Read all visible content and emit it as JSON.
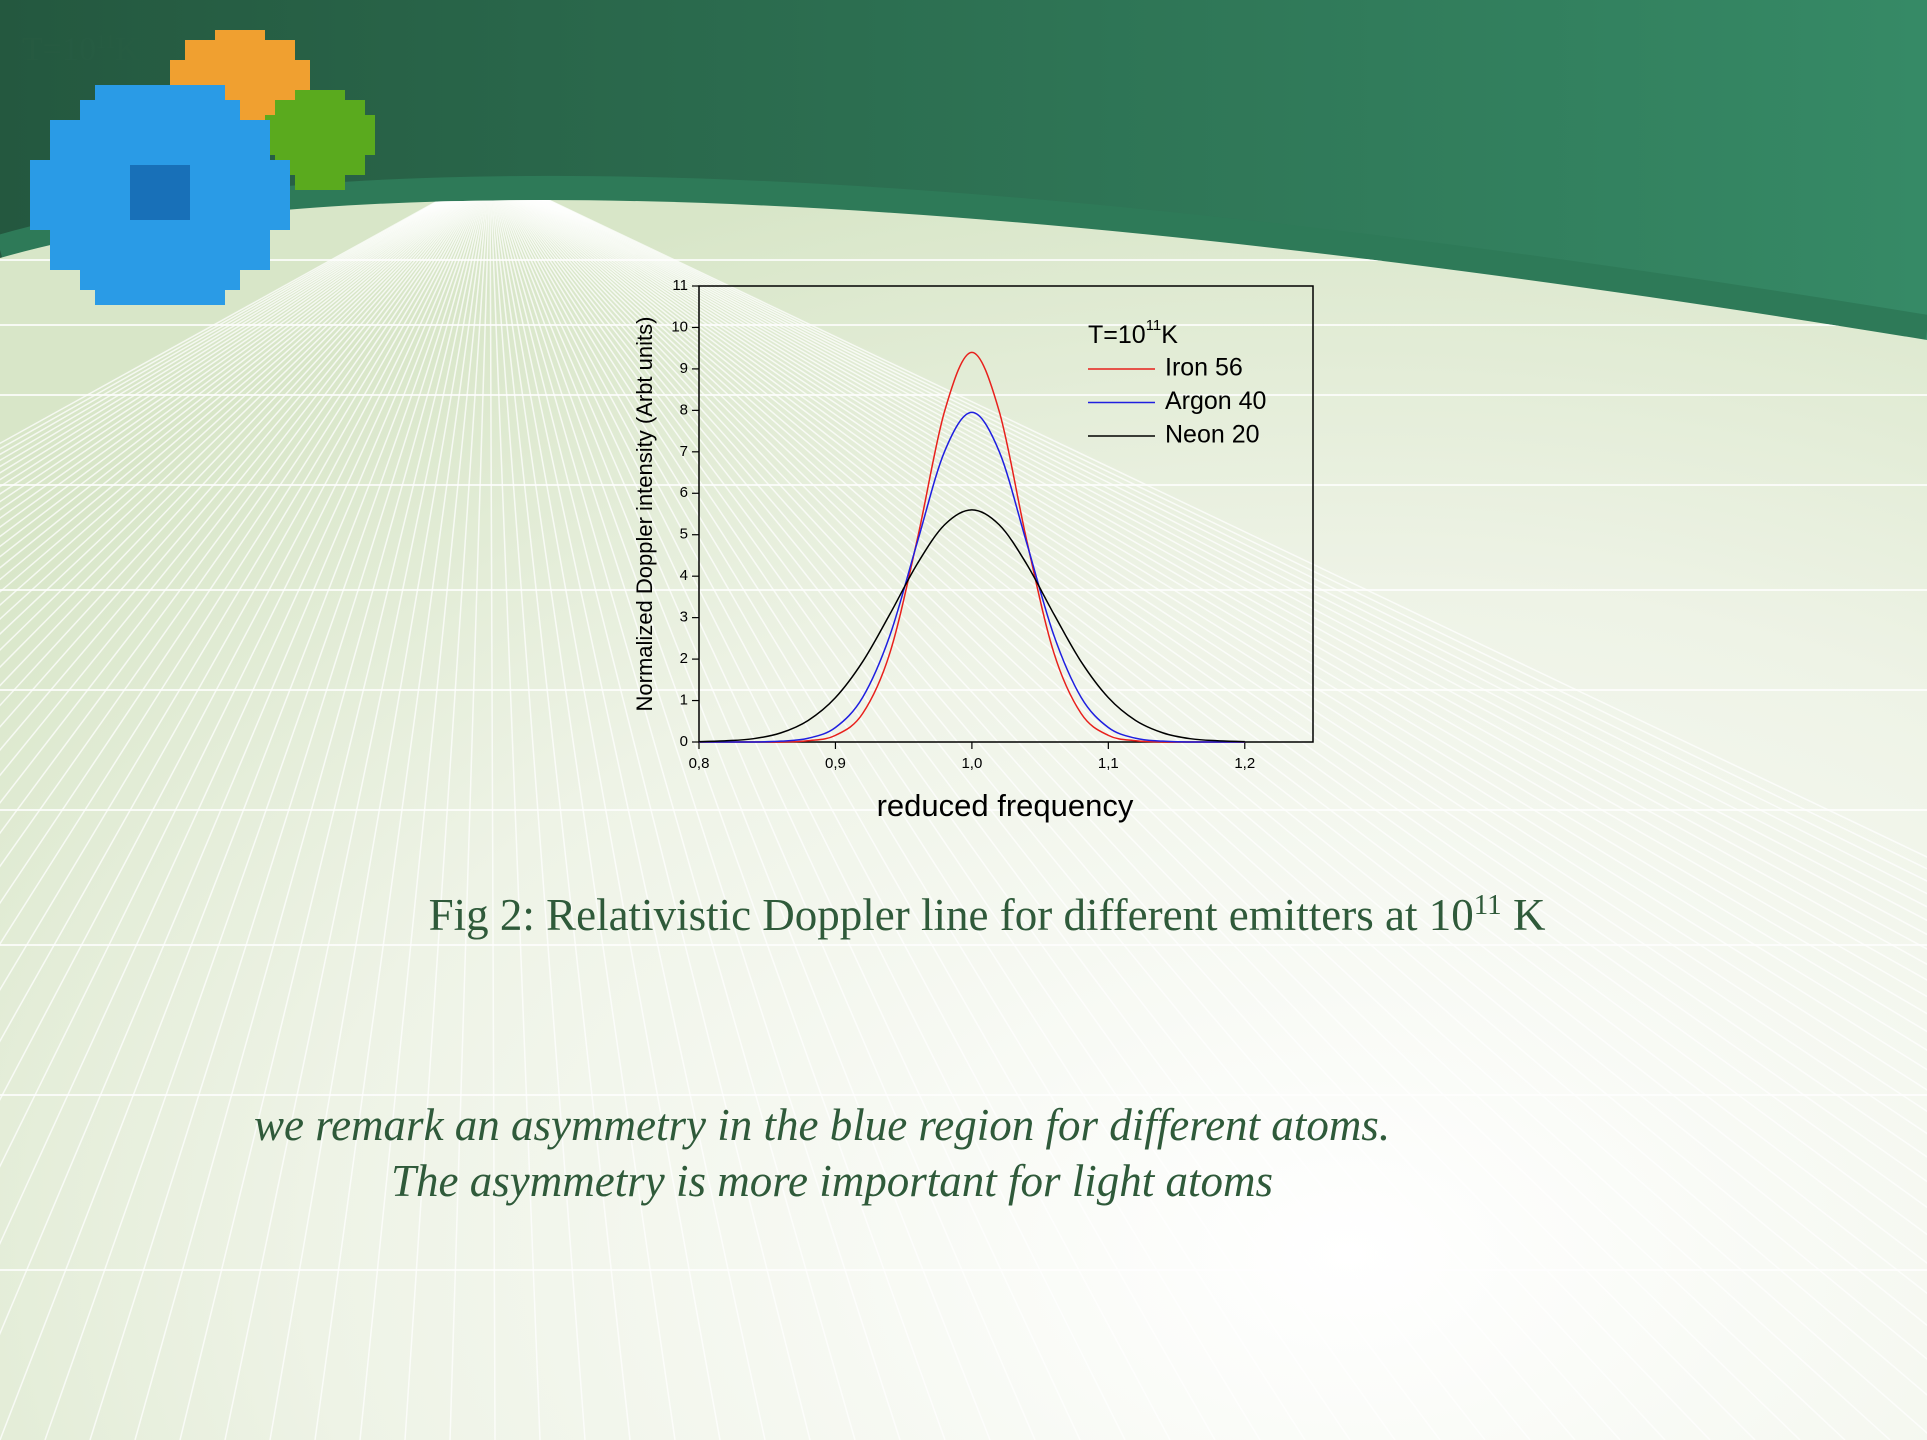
{
  "header": {
    "ghost_label": {
      "text": "T=10",
      "sup": "11",
      "unit": "K"
    }
  },
  "chart_data": {
    "type": "line",
    "x": [
      0.8,
      0.82,
      0.84,
      0.86,
      0.88,
      0.9,
      0.92,
      0.94,
      0.96,
      0.98,
      1.0,
      1.02,
      1.04,
      1.06,
      1.08,
      1.1,
      1.12,
      1.14,
      1.16,
      1.18,
      1.2
    ],
    "series": [
      {
        "name": "Iron 56",
        "color": "#e8201c",
        "values": [
          0,
          0,
          0,
          0,
          0.03,
          0.16,
          0.69,
          2.16,
          4.89,
          7.98,
          9.4,
          7.98,
          4.89,
          2.16,
          0.69,
          0.16,
          0.03,
          0,
          0,
          0,
          0
        ]
      },
      {
        "name": "Argon 40",
        "color": "#1f1fe0",
        "values": [
          0,
          0,
          0,
          0.02,
          0.09,
          0.35,
          1.08,
          2.58,
          4.82,
          7.01,
          7.95,
          7.01,
          4.82,
          2.58,
          1.08,
          0.35,
          0.09,
          0.02,
          0,
          0,
          0
        ]
      },
      {
        "name": "Neon 20",
        "color": "#000000",
        "values": [
          0.01,
          0.03,
          0.08,
          0.22,
          0.52,
          1.07,
          1.94,
          3.09,
          4.3,
          5.24,
          5.6,
          5.24,
          4.3,
          3.09,
          1.94,
          1.07,
          0.52,
          0.22,
          0.08,
          0.03,
          0.01
        ]
      }
    ],
    "legend_title": {
      "text": "T=10",
      "sup": "11",
      "unit": "K"
    },
    "x_label": "reduced frequency",
    "y_label": "Normalized Doppler intensity (Arbt units)",
    "xlim": [
      0.8,
      1.25
    ],
    "xticks": [
      {
        "value": 0.8,
        "label": "0,8"
      },
      {
        "value": 0.9,
        "label": "0,9"
      },
      {
        "value": 1.0,
        "label": "1,0"
      },
      {
        "value": 1.1,
        "label": "1,1"
      },
      {
        "value": 1.2,
        "label": "1,2"
      }
    ],
    "ylim": [
      0,
      11
    ],
    "yticks": [
      0,
      1,
      2,
      3,
      4,
      5,
      6,
      7,
      8,
      9,
      10,
      11
    ],
    "grid": false,
    "legend": "upper right"
  },
  "caption": {
    "text": "Fig 2: Relativistic Doppler line for different emitters  at 10",
    "sup": "11",
    "unit": " K"
  },
  "remarks": [
    "we remark an asymmetry in the blue region for different atoms.",
    "The asymmetry is more important for light atoms"
  ]
}
